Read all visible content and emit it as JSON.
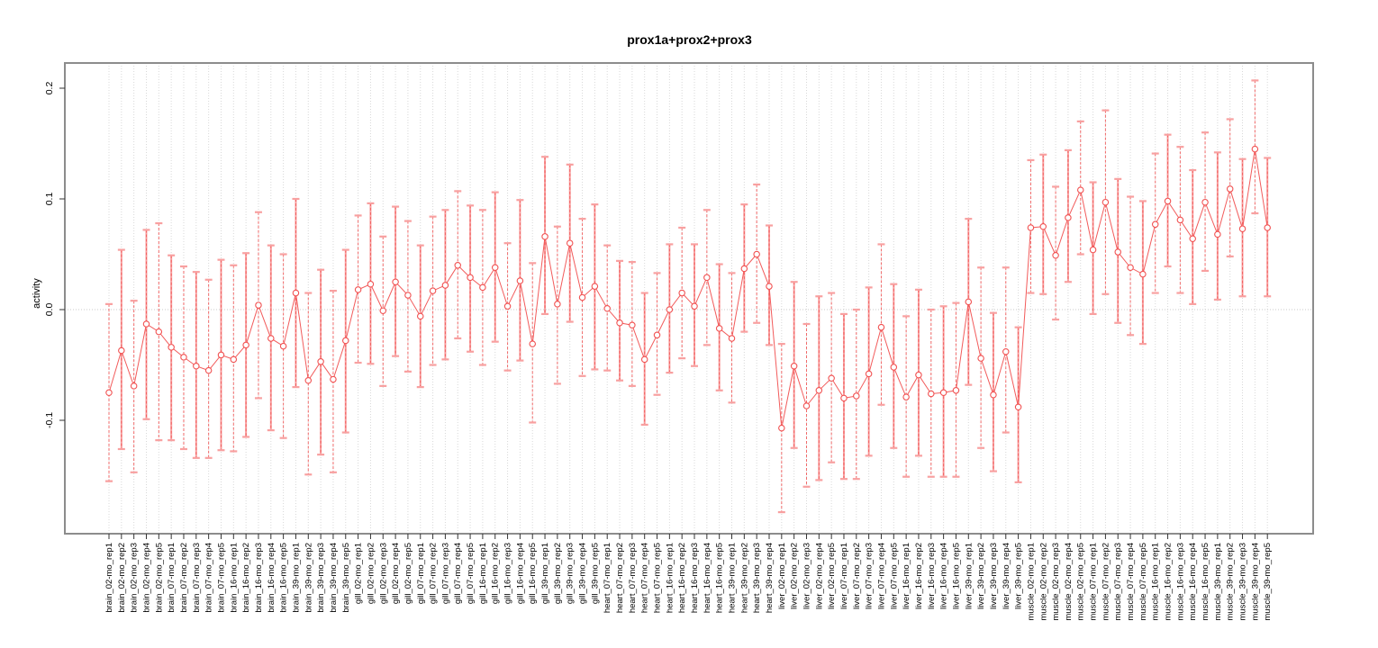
{
  "title": "prox1a+prox2+prox3",
  "chart_data": {
    "type": "line",
    "subtype": "points-with-error-bars",
    "title": "prox1a+prox2+prox3",
    "xlabel": "",
    "ylabel": "activity",
    "yticks": [
      0.2,
      0.1,
      0.0,
      -0.1
    ],
    "ylim": [
      -0.202,
      0.222
    ],
    "grid": "dotted vertical gridline per sample; dotted horizontal line at y=0",
    "legend_position": "none",
    "colors": {
      "series_red": "#f15252",
      "errorbar_salmon": "#f8a0a0",
      "grid_gray": "#d8d8d8",
      "zero_line_gray": "#c8c8c8",
      "box_gray": "#8c8c8c",
      "tick_black": "#333333",
      "point_fill": "#ffffff"
    },
    "categories": [
      "brain_02-mo_rep1",
      "brain_02-mo_rep2",
      "brain_02-mo_rep3",
      "brain_02-mo_rep4",
      "brain_02-mo_rep5",
      "brain_07-mo_rep1",
      "brain_07-mo_rep2",
      "brain_07-mo_rep3",
      "brain_07-mo_rep4",
      "brain_07-mo_rep5",
      "brain_16-mo_rep1",
      "brain_16-mo_rep2",
      "brain_16-mo_rep3",
      "brain_16-mo_rep4",
      "brain_16-mo_rep5",
      "brain_39-mo_rep1",
      "brain_39-mo_rep2",
      "brain_39-mo_rep3",
      "brain_39-mo_rep4",
      "brain_39-mo_rep5",
      "gill_02-mo_rep1",
      "gill_02-mo_rep2",
      "gill_02-mo_rep3",
      "gill_02-mo_rep4",
      "gill_02-mo_rep5",
      "gill_07-mo_rep1",
      "gill_07-mo_rep2",
      "gill_07-mo_rep3",
      "gill_07-mo_rep4",
      "gill_07-mo_rep5",
      "gill_16-mo_rep1",
      "gill_16-mo_rep2",
      "gill_16-mo_rep3",
      "gill_16-mo_rep4",
      "gill_16-mo_rep5",
      "gill_39-mo_rep1",
      "gill_39-mo_rep2",
      "gill_39-mo_rep3",
      "gill_39-mo_rep4",
      "gill_39-mo_rep5",
      "heart_07-mo_rep1",
      "heart_07-mo_rep2",
      "heart_07-mo_rep3",
      "heart_07-mo_rep4",
      "heart_07-mo_rep5",
      "heart_16-mo_rep1",
      "heart_16-mo_rep2",
      "heart_16-mo_rep3",
      "heart_16-mo_rep4",
      "heart_16-mo_rep5",
      "heart_39-mo_rep1",
      "heart_39-mo_rep2",
      "heart_39-mo_rep3",
      "heart_39-mo_rep4",
      "liver_02-mo_rep1",
      "liver_02-mo_rep2",
      "liver_02-mo_rep3",
      "liver_02-mo_rep4",
      "liver_02-mo_rep5",
      "liver_07-mo_rep1",
      "liver_07-mo_rep2",
      "liver_07-mo_rep3",
      "liver_07-mo_rep4",
      "liver_07-mo_rep5",
      "liver_16-mo_rep1",
      "liver_16-mo_rep2",
      "liver_16-mo_rep3",
      "liver_16-mo_rep4",
      "liver_16-mo_rep5",
      "liver_39-mo_rep1",
      "liver_39-mo_rep2",
      "liver_39-mo_rep3",
      "liver_39-mo_rep4",
      "liver_39-mo_rep5",
      "muscle_02-mo_rep1",
      "muscle_02-mo_rep2",
      "muscle_02-mo_rep3",
      "muscle_02-mo_rep4",
      "muscle_02-mo_rep5",
      "muscle_07-mo_rep1",
      "muscle_07-mo_rep2",
      "muscle_07-mo_rep3",
      "muscle_07-mo_rep4",
      "muscle_07-mo_rep5",
      "muscle_16-mo_rep1",
      "muscle_16-mo_rep2",
      "muscle_16-mo_rep3",
      "muscle_16-mo_rep4",
      "muscle_16-mo_rep5",
      "muscle_39-mo_rep1",
      "muscle_39-mo_rep2",
      "muscle_39-mo_rep3",
      "muscle_39-mo_rep4",
      "muscle_39-mo_rep5"
    ],
    "values": [
      -0.075,
      -0.037,
      -0.069,
      -0.013,
      -0.02,
      -0.034,
      -0.043,
      -0.051,
      -0.055,
      -0.041,
      -0.045,
      -0.032,
      0.004,
      -0.026,
      -0.033,
      0.015,
      -0.064,
      -0.047,
      -0.063,
      -0.028,
      0.018,
      0.023,
      -0.001,
      0.025,
      0.013,
      -0.006,
      0.017,
      0.022,
      0.04,
      0.029,
      0.02,
      0.038,
      0.003,
      0.026,
      -0.031,
      0.066,
      0.005,
      0.06,
      0.011,
      0.021,
      0.001,
      -0.012,
      -0.014,
      -0.045,
      -0.023,
      0.0,
      0.015,
      0.003,
      0.029,
      -0.017,
      -0.026,
      0.037,
      0.05,
      0.021,
      -0.107,
      -0.051,
      -0.087,
      -0.073,
      -0.062,
      -0.08,
      -0.078,
      -0.058,
      -0.016,
      -0.052,
      -0.079,
      -0.059,
      -0.076,
      -0.075,
      -0.073,
      0.007,
      -0.044,
      -0.077,
      -0.038,
      -0.088,
      0.074,
      0.075,
      0.049,
      0.083,
      0.108,
      0.054,
      0.097,
      0.052,
      0.038,
      0.032,
      0.077,
      0.098,
      0.081,
      0.064,
      0.097,
      0.068,
      0.109,
      0.073,
      0.145,
      0.074
    ],
    "err_hi": [
      0.005,
      0.054,
      0.008,
      0.072,
      0.078,
      0.049,
      0.039,
      0.034,
      0.027,
      0.045,
      0.04,
      0.051,
      0.088,
      0.058,
      0.05,
      0.1,
      0.015,
      0.036,
      0.017,
      0.054,
      0.085,
      0.096,
      0.066,
      0.093,
      0.08,
      0.058,
      0.084,
      0.09,
      0.107,
      0.094,
      0.09,
      0.106,
      0.06,
      0.099,
      0.042,
      0.138,
      0.075,
      0.131,
      0.082,
      0.095,
      0.058,
      0.044,
      0.043,
      0.015,
      0.033,
      0.059,
      0.074,
      0.059,
      0.09,
      0.041,
      0.033,
      0.095,
      0.113,
      0.076,
      -0.031,
      0.025,
      -0.013,
      0.012,
      0.015,
      -0.004,
      0.0,
      0.02,
      0.059,
      0.023,
      -0.006,
      0.018,
      0.0,
      0.003,
      0.006,
      0.082,
      0.038,
      -0.003,
      0.038,
      -0.016,
      0.135,
      0.14,
      0.111,
      0.144,
      0.17,
      0.115,
      0.18,
      0.118,
      0.102,
      0.098,
      0.141,
      0.158,
      0.147,
      0.126,
      0.16,
      0.142,
      0.172,
      0.136,
      0.207,
      0.137
    ],
    "err_lo": [
      -0.155,
      -0.126,
      -0.147,
      -0.099,
      -0.118,
      -0.118,
      -0.126,
      -0.134,
      -0.134,
      -0.127,
      -0.128,
      -0.115,
      -0.08,
      -0.109,
      -0.116,
      -0.07,
      -0.149,
      -0.131,
      -0.147,
      -0.111,
      -0.048,
      -0.049,
      -0.069,
      -0.042,
      -0.056,
      -0.07,
      -0.05,
      -0.045,
      -0.026,
      -0.038,
      -0.05,
      -0.029,
      -0.055,
      -0.046,
      -0.102,
      -0.004,
      -0.067,
      -0.011,
      -0.06,
      -0.054,
      -0.055,
      -0.064,
      -0.069,
      -0.104,
      -0.077,
      -0.057,
      -0.044,
      -0.051,
      -0.032,
      -0.073,
      -0.084,
      -0.02,
      -0.012,
      -0.032,
      -0.183,
      -0.125,
      -0.16,
      -0.154,
      -0.138,
      -0.153,
      -0.153,
      -0.132,
      -0.086,
      -0.125,
      -0.151,
      -0.132,
      -0.151,
      -0.151,
      -0.151,
      -0.068,
      -0.125,
      -0.146,
      -0.111,
      -0.156,
      0.015,
      0.014,
      -0.009,
      0.025,
      0.05,
      -0.004,
      0.014,
      -0.012,
      -0.023,
      -0.031,
      0.015,
      0.039,
      0.015,
      0.005,
      0.035,
      0.009,
      0.048,
      0.012,
      0.087,
      0.012
    ]
  }
}
